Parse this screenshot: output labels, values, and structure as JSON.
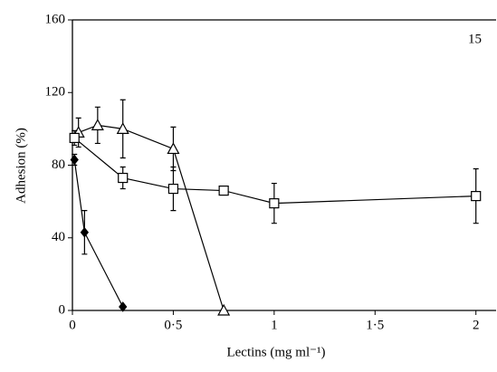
{
  "chart_data": {
    "type": "line",
    "xlabel": "Lectins (mg ml⁻¹)",
    "ylabel": "Adhesion (%)",
    "annotation": "15",
    "xlim": [
      0,
      2.1
    ],
    "ylim": [
      0,
      160
    ],
    "xticks": [
      0,
      {
        "value": 0.5,
        "label": "0·5"
      },
      1,
      {
        "value": 1.5,
        "label": "1·5"
      },
      2
    ],
    "yticks": [
      0,
      40,
      80,
      120,
      160
    ],
    "series": [
      {
        "marker": "triangle",
        "color": "#000000",
        "x": [
          0.03,
          0.125,
          0.25,
          0.5,
          0.75
        ],
        "values": [
          98,
          102,
          100,
          89,
          0
        ],
        "errors": [
          8,
          10,
          16,
          12,
          0
        ]
      },
      {
        "marker": "square",
        "color": "#000000",
        "x": [
          0.01,
          0.25,
          0.5,
          0.75,
          1,
          2
        ],
        "values": [
          95,
          73,
          67,
          66,
          59,
          63
        ],
        "errors": [
          4,
          6,
          12,
          0,
          11,
          15
        ]
      },
      {
        "marker": "diamond",
        "color": "#000000",
        "x": [
          0.01,
          0.06,
          0.25
        ],
        "values": [
          83,
          43,
          2
        ],
        "errors": [
          3,
          12,
          0
        ]
      }
    ]
  }
}
